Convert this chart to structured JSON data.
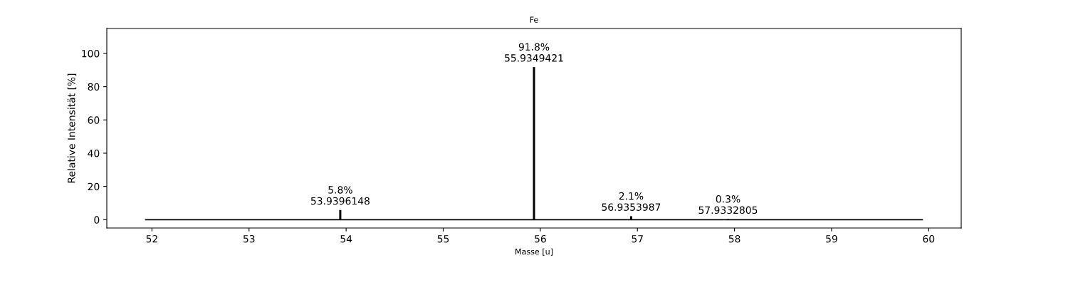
{
  "chart_data": {
    "type": "bar",
    "title": "Fe",
    "xlabel": "Masse [u]",
    "ylabel": "Relative Intensität [%]",
    "x": [
      53.9396148,
      55.9349421,
      56.9353987,
      57.9332805
    ],
    "series": [
      {
        "color": "#000000",
        "values": [
          5.8,
          91.8,
          2.1,
          0.3
        ],
        "value_labels": [
          "5.8%\n53.9396148",
          "91.8%\n55.9349421",
          "2.1%\n56.9353987",
          "0.3%\n57.9332805"
        ]
      },
      {
        "type": "line",
        "color": "#000000",
        "x": [
          51.935,
          59.935
        ],
        "values": [
          0,
          0
        ]
      }
    ],
    "xlim": [
      51.535,
      60.335
    ],
    "ylim": [
      -5,
      115
    ],
    "xticks": [
      52,
      53,
      54,
      55,
      56,
      57,
      58,
      59,
      60
    ],
    "yticks": [
      0,
      20,
      40,
      60,
      80,
      100
    ],
    "grid": false,
    "legend": false
  }
}
